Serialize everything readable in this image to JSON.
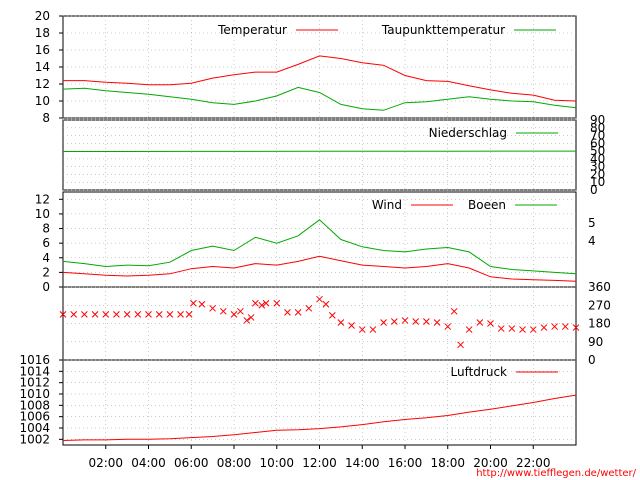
{
  "chart_data": [
    {
      "panel": "temperature",
      "type": "line",
      "ylim": [
        8,
        20
      ],
      "yticks": [
        "8",
        "10",
        "12",
        "14",
        "16",
        "18",
        "20"
      ],
      "series": [
        {
          "name": "Temperatur",
          "color": "#ff0000",
          "x": [
            0,
            1,
            2,
            3,
            4,
            5,
            6,
            7,
            8,
            9,
            10,
            11,
            12,
            13,
            14,
            15,
            16,
            17,
            18,
            19,
            20,
            21,
            22,
            23,
            24
          ],
          "y": [
            12.4,
            12.4,
            12.2,
            12.1,
            11.9,
            11.9,
            12.1,
            12.7,
            13.1,
            13.4,
            13.4,
            14.3,
            15.3,
            15.0,
            14.5,
            14.2,
            13.0,
            12.4,
            12.3,
            11.8,
            11.3,
            10.9,
            10.7,
            10.1,
            10.0
          ]
        },
        {
          "name": "Taupunkttemperatur",
          "color": "#00aa00",
          "x": [
            0,
            1,
            2,
            3,
            4,
            5,
            6,
            7,
            8,
            9,
            10,
            11,
            12,
            13,
            14,
            15,
            16,
            17,
            18,
            19,
            20,
            21,
            22,
            23,
            24
          ],
          "y": [
            11.4,
            11.5,
            11.2,
            11.0,
            10.8,
            10.5,
            10.2,
            9.8,
            9.6,
            10.0,
            10.6,
            11.6,
            11.0,
            9.6,
            9.1,
            8.9,
            9.8,
            9.9,
            10.2,
            10.5,
            10.2,
            10.0,
            9.9,
            9.5,
            9.2
          ]
        }
      ]
    },
    {
      "panel": "precipitation",
      "type": "line",
      "ylim": [
        0,
        90
      ],
      "yticks": [
        "0",
        "10",
        "20",
        "30",
        "40",
        "50",
        "60",
        "70",
        "80",
        "90"
      ],
      "series": [
        {
          "name": "Niederschlag",
          "color": "#00aa00",
          "x": [
            0,
            6,
            12,
            18,
            24
          ],
          "y": [
            49.5,
            49.6,
            49.8,
            49.9,
            50.0
          ]
        }
      ]
    },
    {
      "panel": "wind",
      "type": "line",
      "ylim": [
        0,
        13
      ],
      "yticks": [
        "0",
        "2",
        "4",
        "6",
        "8",
        "10",
        "12"
      ],
      "right_ticks": [
        "4",
        "5"
      ],
      "series": [
        {
          "name": "Wind",
          "color": "#ff0000",
          "x": [
            0,
            1,
            2,
            3,
            4,
            5,
            6,
            7,
            8,
            9,
            10,
            11,
            12,
            13,
            14,
            15,
            16,
            17,
            18,
            19,
            20,
            21,
            22,
            23,
            24
          ],
          "y": [
            2.0,
            1.8,
            1.6,
            1.5,
            1.6,
            1.8,
            2.5,
            2.8,
            2.6,
            3.2,
            3.0,
            3.5,
            4.2,
            3.6,
            3.0,
            2.8,
            2.6,
            2.8,
            3.2,
            2.6,
            1.4,
            1.1,
            1.0,
            0.9,
            0.8
          ]
        },
        {
          "name": "Boeen",
          "color": "#00aa00",
          "x": [
            0,
            1,
            2,
            3,
            4,
            5,
            6,
            7,
            8,
            9,
            10,
            11,
            12,
            13,
            14,
            15,
            16,
            17,
            18,
            19,
            20,
            21,
            22,
            23,
            24
          ],
          "y": [
            3.5,
            3.2,
            2.8,
            3.0,
            2.9,
            3.4,
            5.0,
            5.6,
            5.0,
            6.8,
            6.0,
            7.0,
            9.2,
            6.5,
            5.5,
            5.0,
            4.8,
            5.2,
            5.4,
            4.8,
            2.8,
            2.4,
            2.2,
            2.0,
            1.8
          ]
        }
      ]
    },
    {
      "panel": "wind_direction",
      "type": "scatter",
      "ylim": [
        0,
        360
      ],
      "right_ticks": [
        "0",
        "90",
        "180",
        "270",
        "360"
      ],
      "series": [
        {
          "name": "",
          "color": "#ff0000",
          "x": [
            0,
            0.5,
            1,
            1.5,
            2,
            2.5,
            3,
            3.5,
            4,
            4.5,
            5,
            5.5,
            5.9,
            6.1,
            6.5,
            7,
            7.5,
            8,
            8.3,
            8.6,
            8.8,
            9,
            9.3,
            9.5,
            10,
            10.5,
            11,
            11.5,
            12,
            12.3,
            12.6,
            13,
            13.5,
            14,
            14.5,
            15,
            15.5,
            16,
            16.5,
            17,
            17.5,
            18,
            18.3,
            18.6,
            19,
            19.5,
            20,
            20.5,
            21,
            21.5,
            22,
            22.5,
            23,
            23.5,
            24
          ],
          "y": [
            225,
            225,
            225,
            225,
            225,
            225,
            225,
            225,
            225,
            225,
            225,
            225,
            225,
            280,
            275,
            255,
            240,
            225,
            240,
            195,
            210,
            280,
            270,
            280,
            280,
            235,
            235,
            255,
            300,
            275,
            220,
            185,
            170,
            150,
            150,
            185,
            190,
            195,
            190,
            190,
            185,
            165,
            240,
            75,
            150,
            185,
            180,
            155,
            155,
            150,
            150,
            160,
            165,
            165,
            160
          ]
        }
      ]
    },
    {
      "panel": "pressure",
      "type": "line",
      "ylim": [
        1001,
        1016
      ],
      "yticks": [
        "1002",
        "1004",
        "1006",
        "1008",
        "1010",
        "1012",
        "1014",
        "1016"
      ],
      "series": [
        {
          "name": "Luftdruck",
          "color": "#ff0000",
          "x": [
            0,
            1,
            2,
            3,
            4,
            5,
            6,
            7,
            8,
            9,
            10,
            11,
            12,
            13,
            14,
            15,
            16,
            17,
            18,
            19,
            20,
            21,
            22,
            23,
            24
          ],
          "y": [
            1001.8,
            1001.9,
            1001.9,
            1002.0,
            1002.0,
            1002.1,
            1002.3,
            1002.5,
            1002.8,
            1003.2,
            1003.6,
            1003.7,
            1003.9,
            1004.2,
            1004.6,
            1005.1,
            1005.5,
            1005.8,
            1006.2,
            1006.8,
            1007.3,
            1007.9,
            1008.5,
            1009.2,
            1009.8
          ]
        }
      ]
    }
  ],
  "x_axis": {
    "labels": [
      "02:00",
      "04:00",
      "06:00",
      "08:00",
      "10:00",
      "12:00",
      "14:00",
      "16:00",
      "18:00",
      "20:00",
      "22:00"
    ],
    "label_hours": [
      2,
      4,
      6,
      8,
      10,
      12,
      14,
      16,
      18,
      20,
      22
    ],
    "range_hours": [
      0,
      24
    ]
  },
  "credit": "http://www.tiefflegen.de/wetter/",
  "colors": {
    "red": "#ff0000",
    "green": "#00aa00",
    "grid": "#999999"
  }
}
